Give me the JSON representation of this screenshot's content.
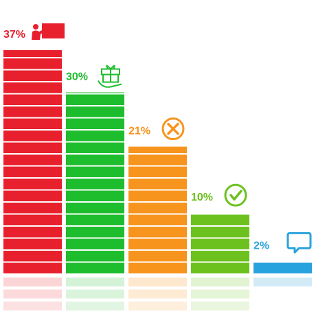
{
  "chart_data": {
    "type": "bar",
    "categories": [
      "Presentation",
      "Gift",
      "Rejected",
      "Approved",
      "Message"
    ],
    "values": [
      37,
      30,
      21,
      10,
      2
    ],
    "value_labels": [
      "37%",
      "30%",
      "21%",
      "10%",
      "2%"
    ],
    "unit": "%",
    "ylim": [
      0,
      37
    ],
    "grid": false,
    "legend": "none",
    "reflection": true,
    "bar_colors": [
      "#e8202e",
      "#1ebd2e",
      "#f7941d",
      "#6cc11e",
      "#29a3dd"
    ],
    "reflection_colors": [
      "#fbd4d6",
      "#d3f2d6",
      "#fde7cd",
      "#e1f3d0",
      "#d2ebf7"
    ],
    "icons": [
      "presenter-icon",
      "gift-hand-icon",
      "x-circle-icon",
      "check-circle-icon",
      "chat-bubble-icon"
    ]
  }
}
